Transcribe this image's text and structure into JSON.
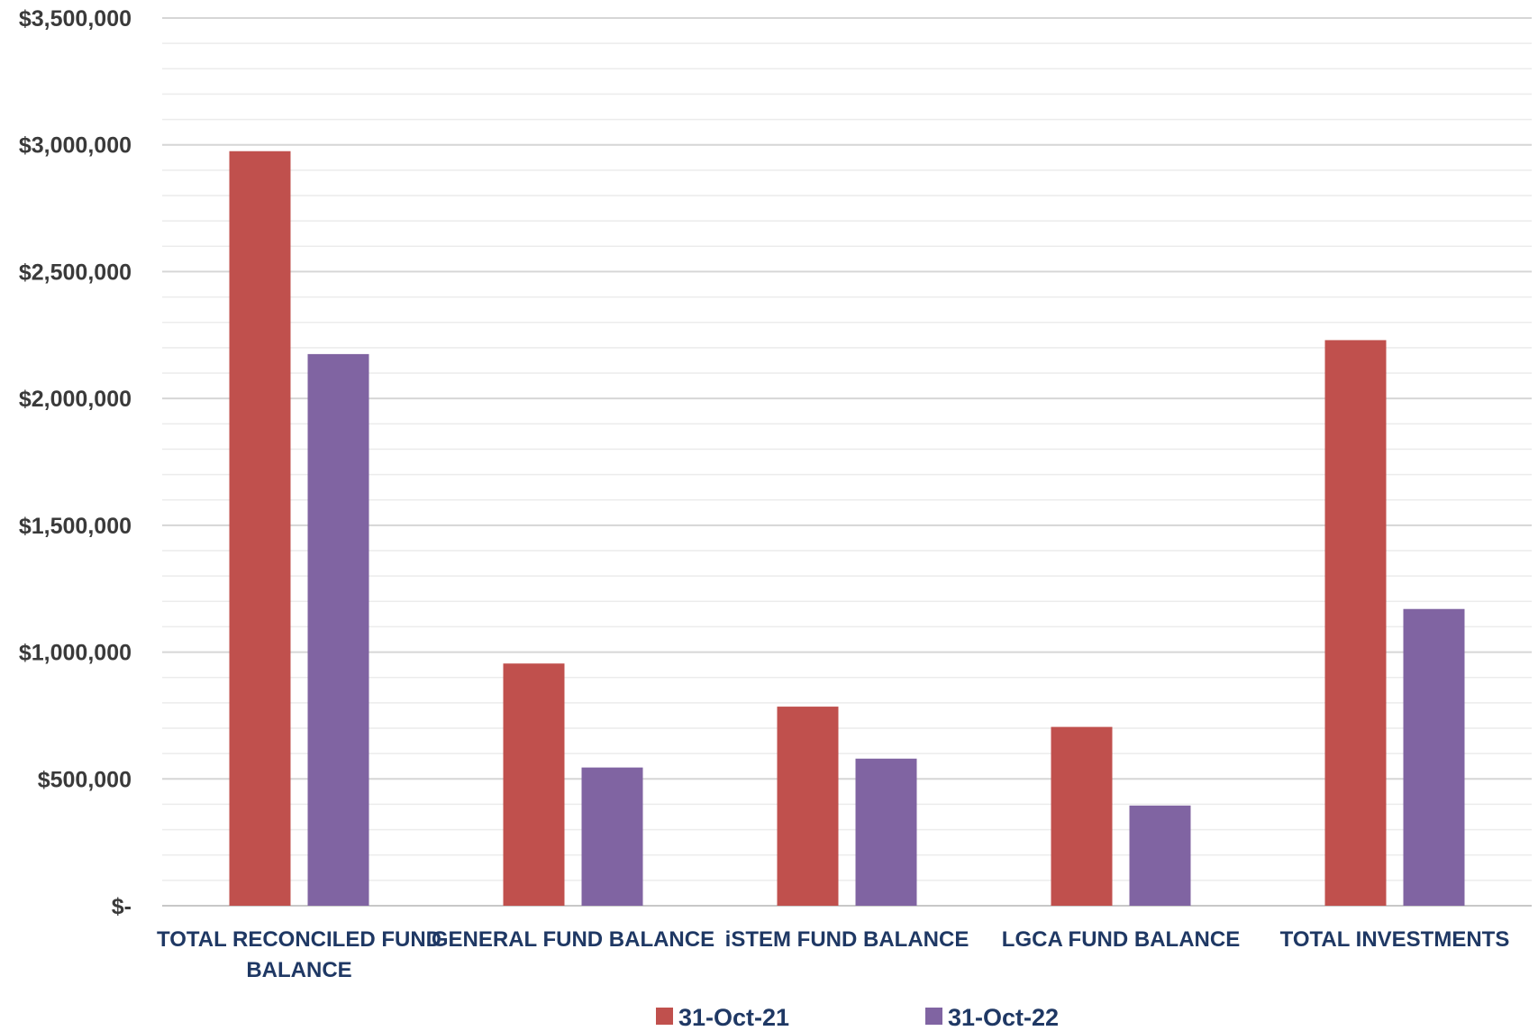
{
  "chart_data": {
    "type": "bar",
    "title": "",
    "xlabel": "",
    "ylabel": "",
    "ylim": [
      0,
      3500000
    ],
    "y_major_step": 500000,
    "y_minor_step": 100000,
    "grid": true,
    "legend_position": "bottom",
    "y_tick_labels": [
      "$-",
      "$500,000",
      "$1,000,000",
      "$1,500,000",
      "$2,000,000",
      "$2,500,000",
      "$3,000,000",
      "$3,500,000"
    ],
    "categories": [
      [
        "TOTAL RECONCILED FUND",
        "BALANCE"
      ],
      [
        "GENERAL FUND BALANCE"
      ],
      [
        "iSTEM FUND BALANCE"
      ],
      [
        "LGCA FUND BALANCE"
      ],
      [
        "TOTAL INVESTMENTS"
      ]
    ],
    "series": [
      {
        "name": "31-Oct-21",
        "color": "#c0504d",
        "values": [
          2975000,
          955000,
          785000,
          705000,
          2230000
        ]
      },
      {
        "name": "31-Oct-22",
        "color": "#8064a2",
        "values": [
          2175000,
          545000,
          580000,
          395000,
          1170000
        ]
      }
    ]
  }
}
